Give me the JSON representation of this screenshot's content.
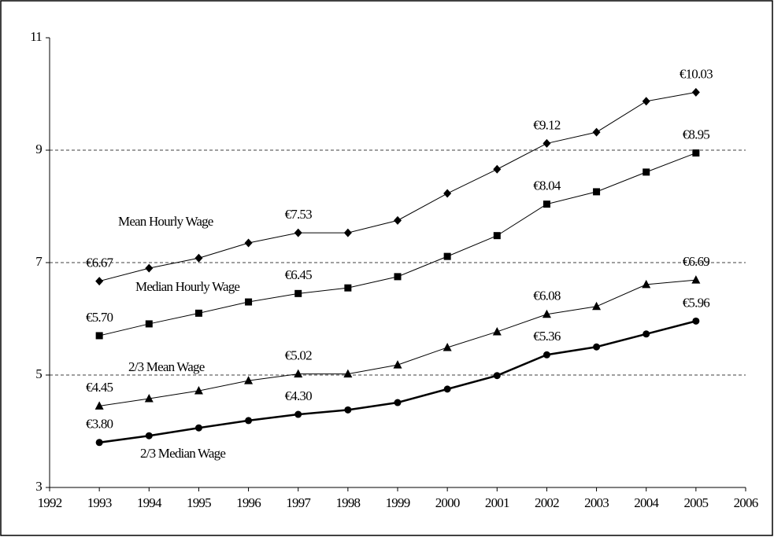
{
  "chart_data": {
    "type": "line",
    "x": [
      1993,
      1994,
      1995,
      1996,
      1997,
      1998,
      1999,
      2000,
      2001,
      2002,
      2003,
      2004,
      2005
    ],
    "series": [
      {
        "name": "Mean Hourly Wage",
        "color": "#000000",
        "marker": "diamond",
        "line_width": 1,
        "values": [
          6.67,
          6.9,
          7.08,
          7.35,
          7.53,
          7.53,
          7.75,
          8.23,
          8.66,
          9.12,
          9.32,
          9.87,
          10.03
        ],
        "value_labels": [
          "€6.67",
          null,
          null,
          null,
          "€7.53",
          null,
          null,
          null,
          null,
          "€9.12",
          null,
          null,
          "€10.03"
        ]
      },
      {
        "name": "Median Hourly Wage",
        "color": "#000000",
        "marker": "square",
        "line_width": 1,
        "values": [
          5.7,
          5.91,
          6.1,
          6.3,
          6.45,
          6.55,
          6.75,
          7.11,
          7.48,
          8.04,
          8.26,
          8.61,
          8.95
        ],
        "value_labels": [
          "€5.70",
          null,
          null,
          null,
          "€6.45",
          null,
          null,
          null,
          null,
          "€8.04",
          null,
          null,
          "€8.95"
        ]
      },
      {
        "name": "2/3 Mean Wage",
        "color": "#000000",
        "marker": "triangle",
        "line_width": 1,
        "values": [
          4.45,
          4.58,
          4.72,
          4.9,
          5.02,
          5.02,
          5.18,
          5.49,
          5.77,
          6.08,
          6.22,
          6.61,
          6.69
        ],
        "value_labels": [
          "€4.45",
          null,
          null,
          null,
          "€5.02",
          null,
          null,
          null,
          null,
          "€6.08",
          null,
          null,
          "€6.69"
        ]
      },
      {
        "name": "2/3 Median Wage",
        "color": "#000000",
        "marker": "circle",
        "line_width": 2.5,
        "values": [
          3.8,
          3.92,
          4.06,
          4.19,
          4.3,
          4.38,
          4.51,
          4.75,
          4.99,
          5.36,
          5.5,
          5.73,
          5.96
        ],
        "value_labels": [
          "€3.80",
          null,
          null,
          null,
          "€4.30",
          null,
          null,
          null,
          null,
          "€5.36",
          null,
          null,
          "€5.96"
        ]
      }
    ],
    "xlim": [
      1992,
      2006
    ],
    "xticks": [
      1992,
      1993,
      1994,
      1995,
      1996,
      1997,
      1998,
      1999,
      2000,
      2001,
      2002,
      2003,
      2004,
      2005,
      2006
    ],
    "ylim": [
      3,
      11
    ],
    "yticks": [
      3,
      5,
      7,
      9,
      11
    ],
    "grid": true
  }
}
